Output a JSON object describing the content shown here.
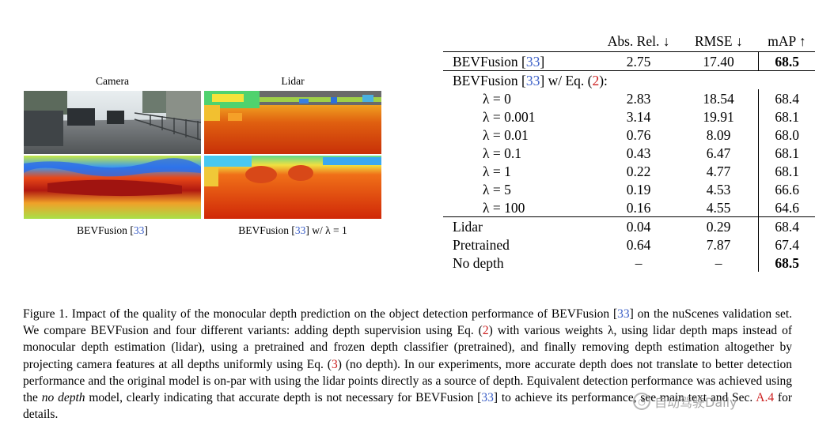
{
  "figure": {
    "panel_titles": {
      "camera": "Camera",
      "lidar": "Lidar"
    },
    "panel_captions": {
      "left": {
        "text": "BEVFusion ",
        "ref": "33"
      },
      "right": {
        "text": "BEVFusion ",
        "ref": "33",
        "suffix": " w/ λ = 1"
      }
    }
  },
  "table": {
    "headers": [
      "Abs. Rel. ↓",
      "RMSE ↓",
      "mAP ↑"
    ],
    "baseline": {
      "name": "BEVFusion ",
      "ref": "33",
      "abs_rel": "2.75",
      "rmse": "17.40",
      "map": "68.5"
    },
    "variant_group": {
      "prefix": "BEVFusion ",
      "ref": "33",
      "mid": " w/ Eq. (",
      "eq": "2",
      "end": "):"
    },
    "variants": [
      {
        "name": "λ = 0",
        "abs_rel": "2.83",
        "rmse": "18.54",
        "map": "68.4"
      },
      {
        "name": "λ = 0.001",
        "abs_rel": "3.14",
        "rmse": "19.91",
        "map": "68.1"
      },
      {
        "name": "λ = 0.01",
        "abs_rel": "0.76",
        "rmse": "8.09",
        "map": "68.0"
      },
      {
        "name": "λ = 0.1",
        "abs_rel": "0.43",
        "rmse": "6.47",
        "map": "68.1"
      },
      {
        "name": "λ = 1",
        "abs_rel": "0.22",
        "rmse": "4.77",
        "map": "68.1"
      },
      {
        "name": "λ = 5",
        "abs_rel": "0.19",
        "rmse": "4.53",
        "map": "66.6"
      },
      {
        "name": "λ = 100",
        "abs_rel": "0.16",
        "rmse": "4.55",
        "map": "64.6"
      }
    ],
    "others": [
      {
        "name": "Lidar",
        "abs_rel": "0.04",
        "rmse": "0.29",
        "map": "68.4"
      },
      {
        "name": "Pretrained",
        "abs_rel": "0.64",
        "rmse": "7.87",
        "map": "67.4"
      },
      {
        "name": "No depth",
        "abs_rel": "–",
        "rmse": "–",
        "map": "68.5"
      }
    ]
  },
  "caption": {
    "label": "Figure 1.",
    "s1": "  Impact of the quality of the monocular depth prediction on the object detection performance of BEVFusion [",
    "r1": "33",
    "s2": "] on the nuScenes validation set. We compare BEVFusion and four different variants: adding depth supervision using Eq. (",
    "e1": "2",
    "s3": ") with various weights λ, using lidar depth maps instead of monocular depth estimation (lidar), using a pretrained and frozen depth classifier (pretrained), and finally removing depth estimation altogether by projecting camera features at all depths uniformly using Eq. (",
    "e2": "3",
    "s4": ") (no depth). In our experiments, more accurate depth does not translate to better detection performance and the original model is on-par with using the lidar points directly as a source of depth. Equivalent detection performance was achieved using the ",
    "em": "no depth",
    "s5": " model, clearly indicating that accurate depth is not necessary for BEVFusion [",
    "r2": "33",
    "s6": "] to achieve its performance, see main text and Sec. ",
    "sec": "A.4",
    "s7": " for details."
  },
  "watermark": {
    "text": "自动驾驶Daily"
  }
}
